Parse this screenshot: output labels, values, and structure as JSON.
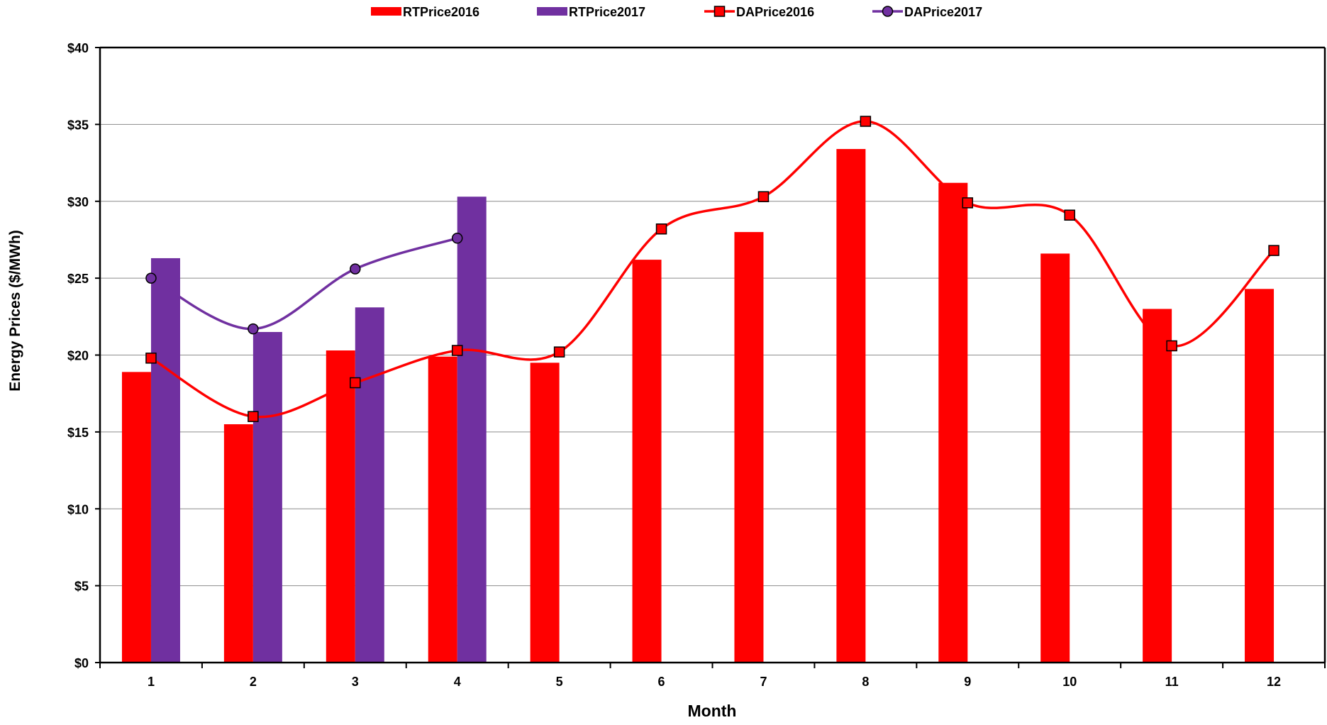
{
  "chart_data": {
    "type": "bar",
    "title": "",
    "xlabel": "Month",
    "ylabel": "Energy Prices ($/MWh)",
    "categories": [
      "1",
      "2",
      "3",
      "4",
      "5",
      "6",
      "7",
      "8",
      "9",
      "10",
      "11",
      "12"
    ],
    "ylim": [
      0,
      40
    ],
    "yticks": [
      0,
      5,
      10,
      15,
      20,
      25,
      30,
      35,
      40
    ],
    "ytick_labels": [
      "$0",
      "$5",
      "$10",
      "$15",
      "$20",
      "$25",
      "$30",
      "$35",
      "$40"
    ],
    "grid": "horizontal",
    "legend_position": "top",
    "bar_series": [
      {
        "name": "RTPrice2016",
        "color": "#ff0000",
        "values": [
          18.9,
          15.5,
          20.3,
          19.9,
          19.5,
          26.2,
          28.0,
          33.4,
          31.2,
          26.6,
          23.0,
          24.3
        ]
      },
      {
        "name": "RTPrice2017",
        "color": "#7030a0",
        "values": [
          26.3,
          21.5,
          23.1,
          30.3,
          null,
          null,
          null,
          null,
          null,
          null,
          null,
          null
        ]
      }
    ],
    "line_series": [
      {
        "name": "DAPrice2016",
        "color": "#ff0000",
        "marker": "square",
        "values": [
          19.8,
          16.0,
          18.2,
          20.3,
          20.2,
          28.2,
          30.3,
          35.2,
          29.9,
          29.1,
          20.6,
          26.8
        ]
      },
      {
        "name": "DAPrice2017",
        "color": "#7030a0",
        "marker": "circle",
        "values": [
          25.0,
          21.7,
          25.6,
          27.6,
          null,
          null,
          null,
          null,
          null,
          null,
          null,
          null
        ]
      }
    ]
  }
}
